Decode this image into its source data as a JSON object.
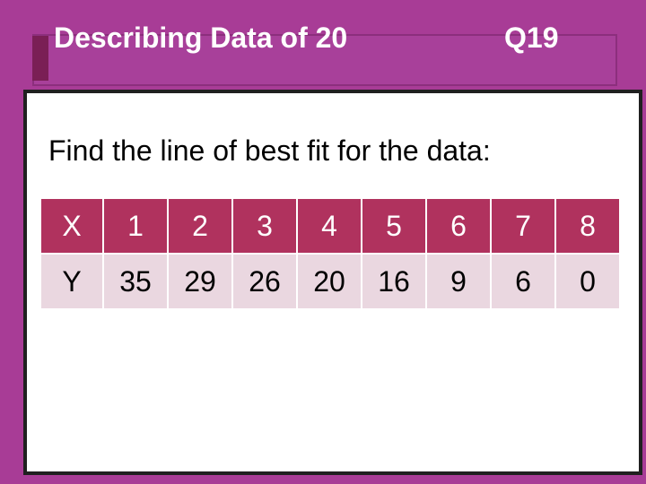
{
  "slide": {
    "title": "Describing Data of 20",
    "question": "Q19",
    "prompt": "Find the line of best fit for the data:"
  },
  "table": {
    "x_label": "X",
    "y_label": "Y",
    "x_values": [
      "1",
      "2",
      "3",
      "4",
      "5",
      "6",
      "7",
      "8"
    ],
    "y_values": [
      "35",
      "29",
      "26",
      "20",
      "16",
      "9",
      "6",
      "0"
    ]
  },
  "colors": {
    "background": "#a83c96",
    "header_row": "#b0325e",
    "data_row": "#ead7e0"
  }
}
